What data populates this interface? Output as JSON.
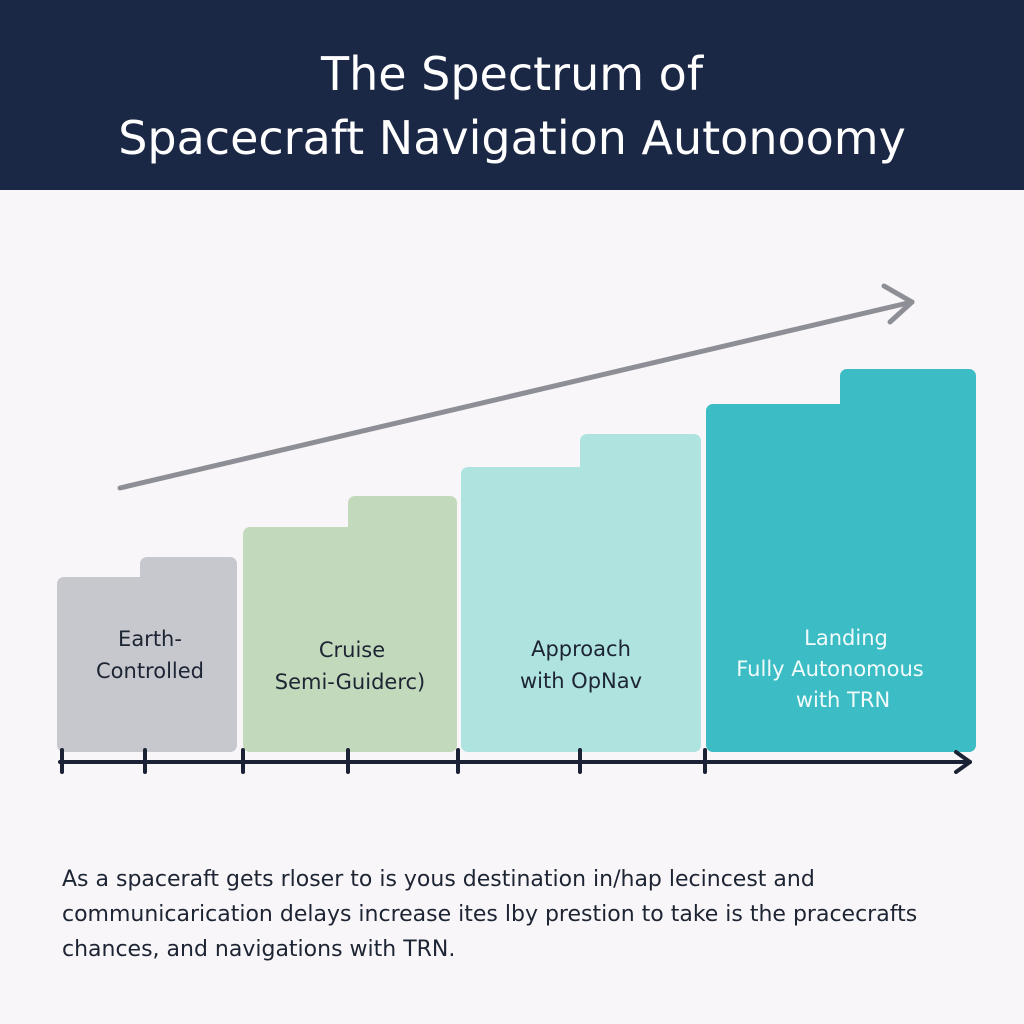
{
  "header": {
    "title_lines": [
      "The Spectrum of",
      "Spacecraft Navigation Autonoomy"
    ]
  },
  "stages": [
    {
      "label_lines": [
        "Earth-",
        "Controlled"
      ]
    },
    {
      "label_lines": [
        "Cruise",
        "Semi-Guiderc)"
      ]
    },
    {
      "label_lines": [
        "Approach",
        "with OpNav"
      ]
    },
    {
      "label_lines": [
        "Landing",
        "Fully Autonomous",
        "with TRN"
      ]
    }
  ],
  "caption": {
    "lines": [
      "As a spaceraft gets rloser to is yous destination in/hap lecincest and",
      "communicarication delays increase ites lby prestion to take is the pracecrafts",
      "chances, and navigations with TRN."
    ]
  }
}
